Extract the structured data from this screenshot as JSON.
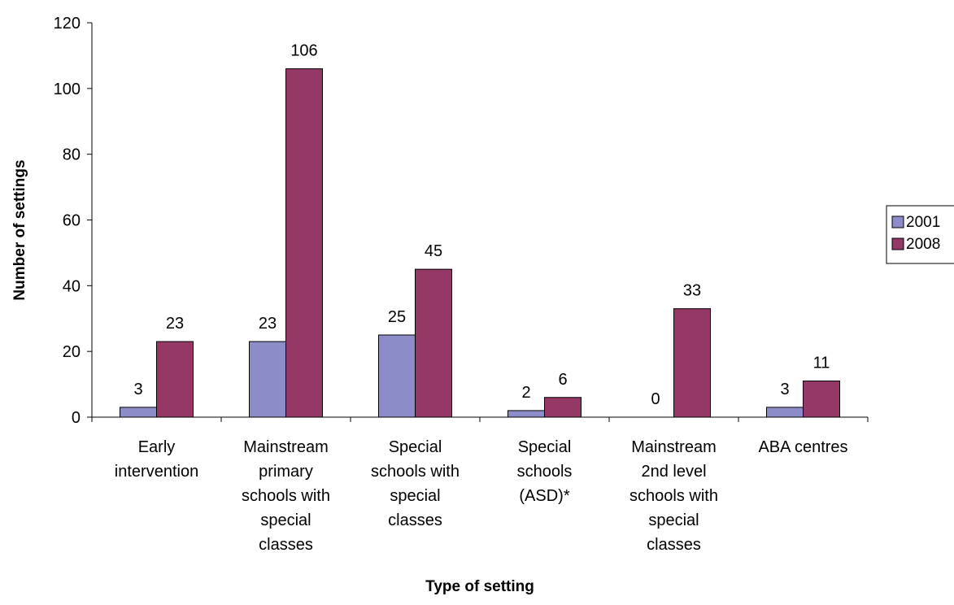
{
  "chart_data": {
    "type": "bar",
    "xlabel": "Type of setting",
    "ylabel": "Number of settings",
    "ylim": [
      0,
      120
    ],
    "yticks": [
      0,
      20,
      40,
      60,
      80,
      100,
      120
    ],
    "grid": false,
    "legend_position": "right",
    "categories": [
      [
        "Early",
        "intervention"
      ],
      [
        "Mainstream",
        "primary",
        "schools with",
        "special",
        "classes"
      ],
      [
        "Special",
        "schools with",
        "special",
        "classes"
      ],
      [
        "Special",
        "schools",
        "(ASD)*"
      ],
      [
        "Mainstream",
        "2nd level",
        "schools with",
        "special",
        "classes"
      ],
      [
        "ABA centres"
      ]
    ],
    "series": [
      {
        "name": "2001",
        "color": "#8c8cc8",
        "values": [
          3,
          23,
          25,
          2,
          0,
          3
        ]
      },
      {
        "name": "2008",
        "color": "#943966",
        "values": [
          23,
          106,
          45,
          6,
          33,
          11
        ]
      }
    ]
  }
}
